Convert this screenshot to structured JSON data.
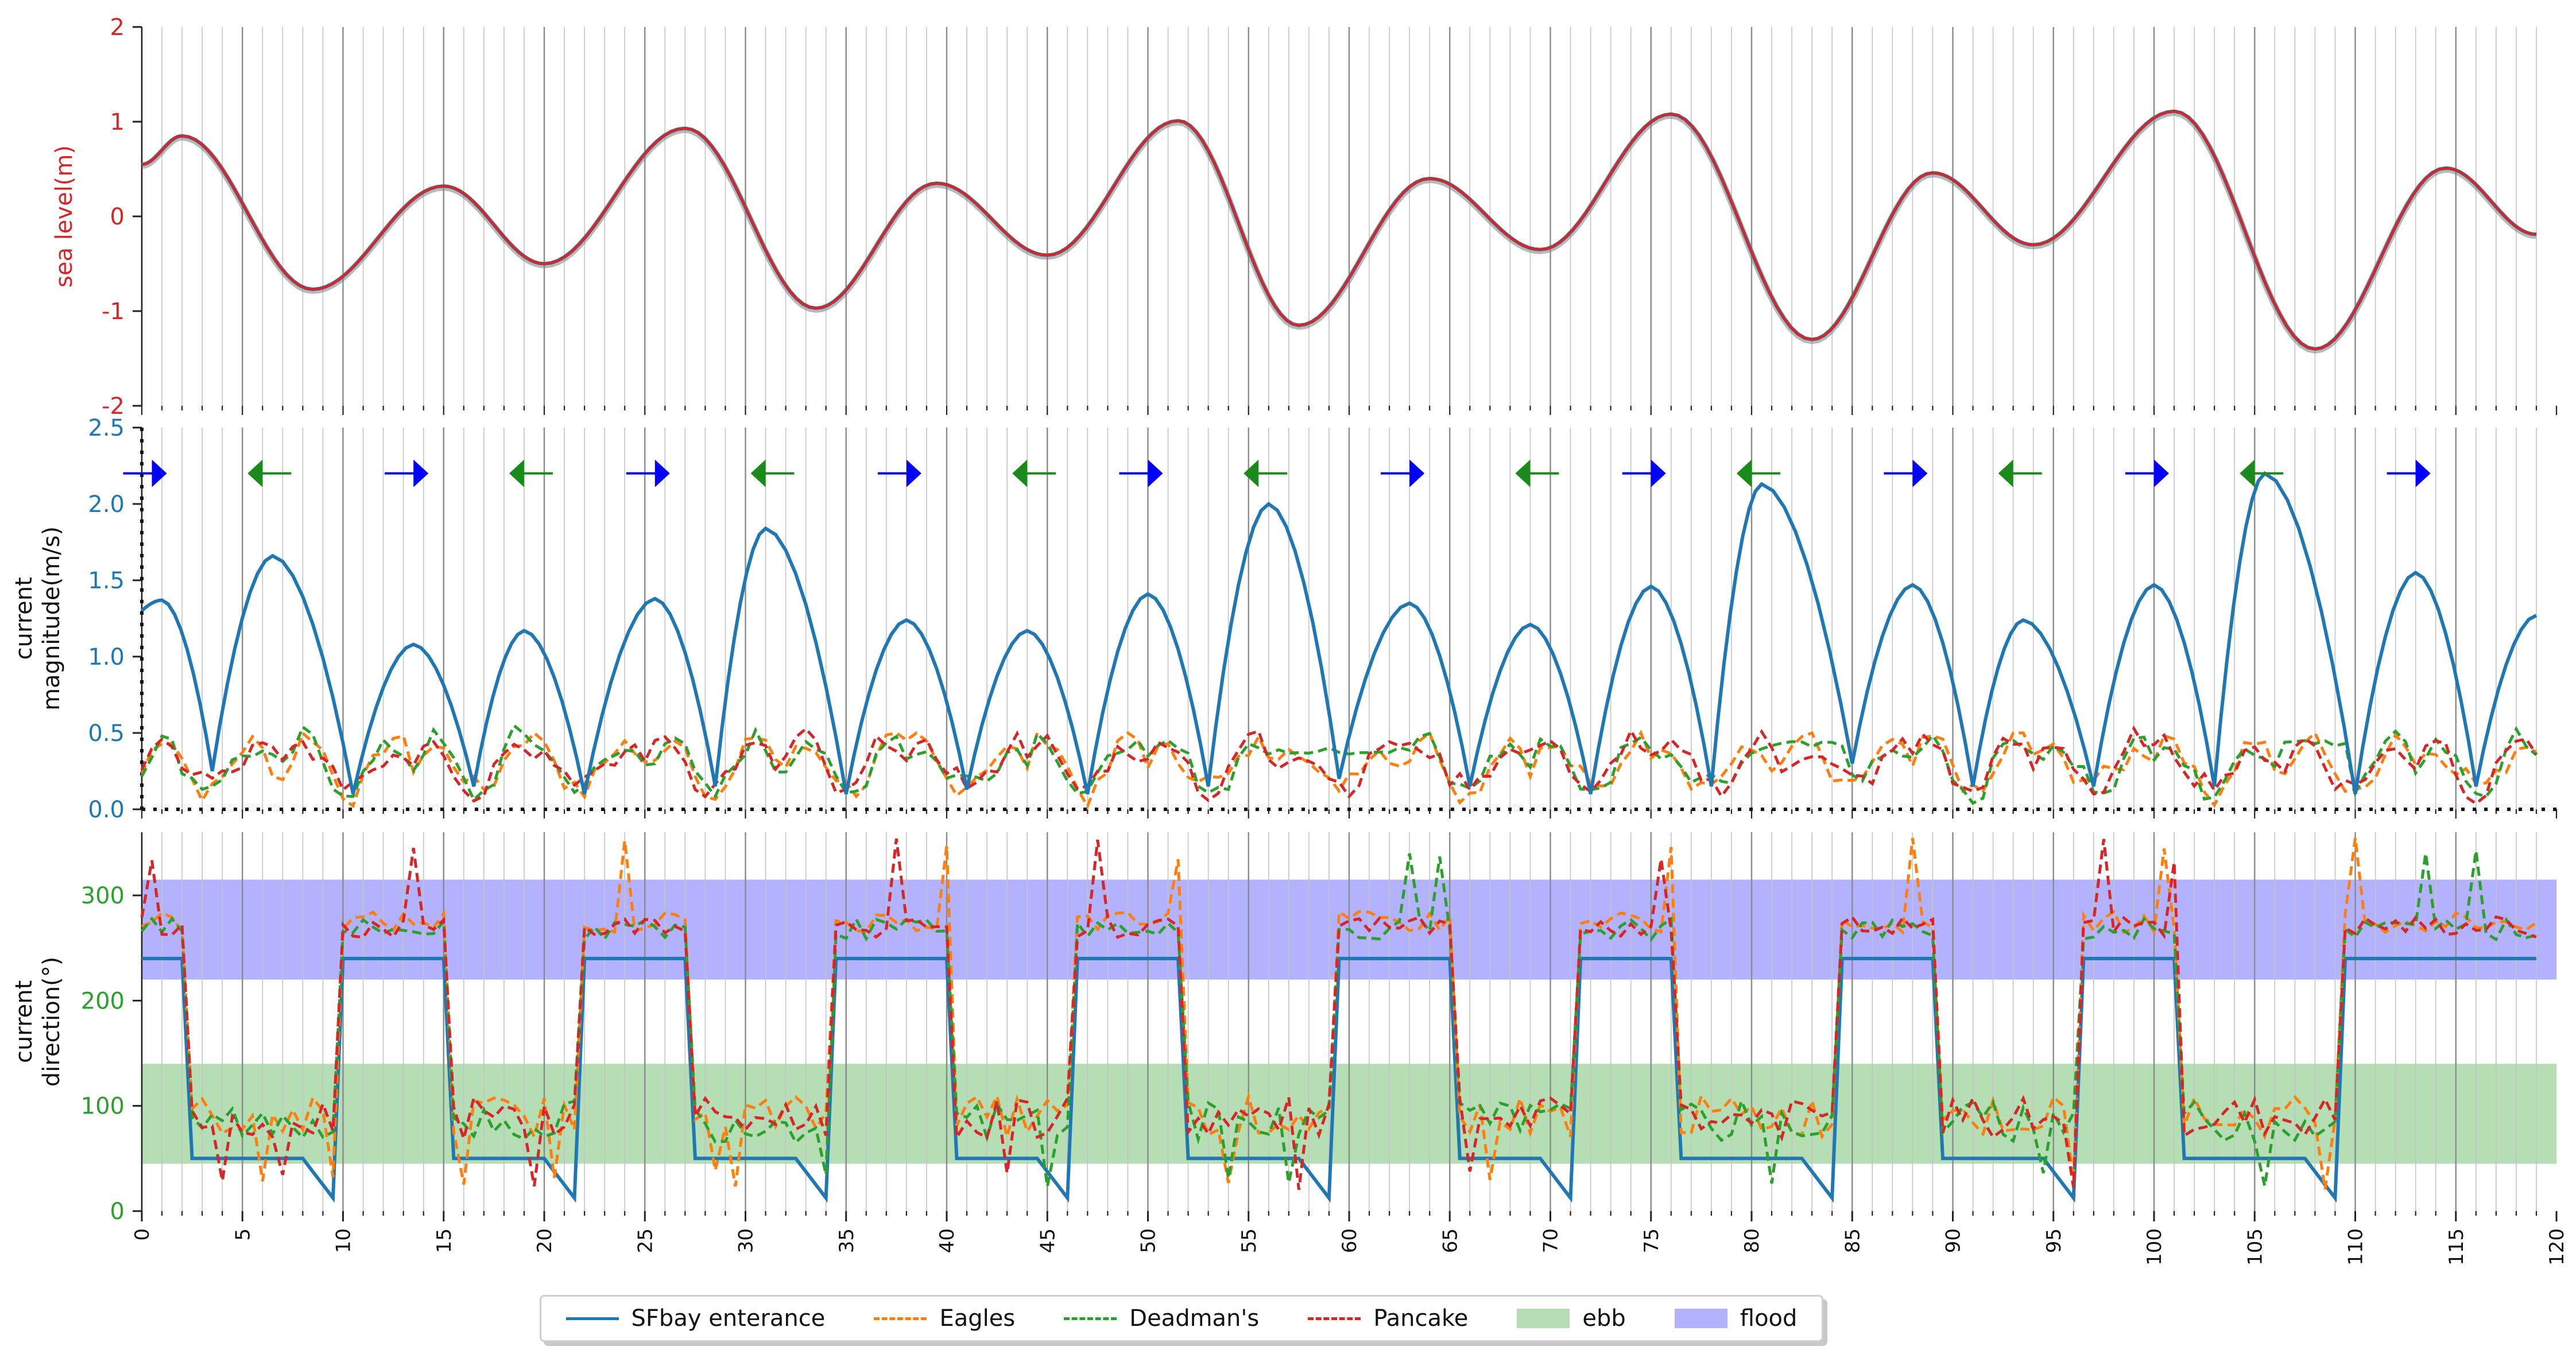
{
  "chart_data": [
    {
      "type": "line",
      "ylabel": "sea level(m)",
      "xlim": [
        0,
        120
      ],
      "ylim": [
        -2,
        2
      ],
      "yticks": [
        -2,
        -1,
        0,
        1,
        2
      ],
      "grid": "vertical",
      "colors": {
        "axis_label": "#d62728",
        "series_sfbay": "#1f77b4",
        "series_pancake": "#d62728"
      },
      "series_extrema": [
        {
          "x": 0,
          "y": 0.55
        },
        {
          "x": 2,
          "y": 0.85
        },
        {
          "x": 8.5,
          "y": -0.77
        },
        {
          "x": 15,
          "y": 0.32
        },
        {
          "x": 20,
          "y": -0.5
        },
        {
          "x": 27,
          "y": 0.93
        },
        {
          "x": 33.5,
          "y": -0.97
        },
        {
          "x": 39.5,
          "y": 0.35
        },
        {
          "x": 45,
          "y": -0.41
        },
        {
          "x": 51.5,
          "y": 1.01
        },
        {
          "x": 57.5,
          "y": -1.15
        },
        {
          "x": 64,
          "y": 0.4
        },
        {
          "x": 69.5,
          "y": -0.35
        },
        {
          "x": 76,
          "y": 1.08
        },
        {
          "x": 83,
          "y": -1.3
        },
        {
          "x": 89,
          "y": 0.46
        },
        {
          "x": 94,
          "y": -0.3
        },
        {
          "x": 101,
          "y": 1.11
        },
        {
          "x": 108,
          "y": -1.4
        },
        {
          "x": 114.5,
          "y": 0.51
        },
        {
          "x": 119,
          "y": -0.19
        }
      ]
    },
    {
      "type": "line",
      "ylabel": "current magnitude(m/s)",
      "xlim": [
        0,
        120
      ],
      "ylim": [
        0,
        2.5
      ],
      "yticks": [
        0.0,
        0.5,
        1.0,
        1.5,
        2.0,
        2.5
      ],
      "grid": "vertical",
      "series": [
        {
          "name": "SFbay enterance",
          "style": "solid",
          "color": "#1f77b4",
          "peaks": [
            [
              0,
              1.3
            ],
            [
              1,
              1.37
            ],
            [
              6.5,
              1.66
            ],
            [
              13.5,
              1.08
            ],
            [
              19,
              1.17
            ],
            [
              25.5,
              1.38
            ],
            [
              31,
              1.84
            ],
            [
              38,
              1.24
            ],
            [
              44,
              1.17
            ],
            [
              50,
              1.41
            ],
            [
              56,
              2.0
            ],
            [
              63,
              1.35
            ],
            [
              69,
              1.21
            ],
            [
              75,
              1.46
            ],
            [
              80.5,
              2.13
            ],
            [
              88,
              1.47
            ],
            [
              93.5,
              1.24
            ],
            [
              100,
              1.47
            ],
            [
              105.5,
              2.2
            ],
            [
              113,
              1.55
            ],
            [
              119,
              1.27
            ]
          ],
          "troughs": [
            [
              3.5,
              0.25
            ],
            [
              10.5,
              0.1
            ],
            [
              16.5,
              0.15
            ],
            [
              22,
              0.1
            ],
            [
              28.5,
              0.15
            ],
            [
              35,
              0.1
            ],
            [
              41,
              0.13
            ],
            [
              47,
              0.1
            ],
            [
              53,
              0.15
            ],
            [
              59.5,
              0.2
            ],
            [
              66,
              0.15
            ],
            [
              72,
              0.1
            ],
            [
              78,
              0.15
            ],
            [
              85,
              0.3
            ],
            [
              91,
              0.15
            ],
            [
              97,
              0.15
            ],
            [
              103,
              0.15
            ],
            [
              110,
              0.1
            ],
            [
              116,
              0.15
            ]
          ]
        },
        {
          "name": "Eagles",
          "style": "dashed",
          "color": "#ff7f0e",
          "level_range": [
            0,
            0.5
          ]
        },
        {
          "name": "Deadman's",
          "style": "dashed",
          "color": "#2ca02c",
          "level_range": [
            0,
            0.7
          ]
        },
        {
          "name": "Pancake",
          "style": "dashed",
          "color": "#d62728",
          "level_range": [
            0,
            0.72
          ]
        }
      ],
      "arrows": {
        "flood": {
          "color": "#0000ff",
          "direction": "right",
          "y": 2.2,
          "x": [
            0.5,
            13.5,
            25.5,
            38,
            50,
            63,
            75,
            88,
            100,
            113
          ]
        },
        "ebb": {
          "color": "#1a8a1a",
          "direction": "left",
          "y": 2.2,
          "x": [
            6,
            19,
            31,
            44,
            55.5,
            69,
            80,
            93,
            105
          ]
        }
      }
    },
    {
      "type": "line",
      "ylabel": "current direction(°)",
      "xlim": [
        0,
        120
      ],
      "ylim": [
        0,
        360
      ],
      "yticks": [
        0,
        100,
        200,
        300
      ],
      "xticks": [
        0,
        5,
        10,
        15,
        20,
        25,
        30,
        35,
        40,
        45,
        50,
        55,
        60,
        65,
        70,
        75,
        80,
        85,
        90,
        95,
        100,
        105,
        110,
        115,
        120
      ],
      "grid": "vertical",
      "bands": [
        {
          "name": "ebb",
          "color": "#2ca02c",
          "alpha": 0.35,
          "range": [
            45,
            140
          ]
        },
        {
          "name": "flood",
          "color": "#0000ff",
          "alpha": 0.3,
          "range": [
            220,
            315
          ]
        }
      ],
      "series": [
        {
          "name": "SFbay enterance",
          "style": "solid",
          "color": "#1f77b4",
          "flood_level": 240,
          "ebb_level": 50
        },
        {
          "name": "Eagles",
          "style": "dashed",
          "color": "#ff7f0e",
          "flood_level": 275,
          "ebb_level": 90
        },
        {
          "name": "Deadman's",
          "style": "dashed",
          "color": "#2ca02c",
          "flood_level": 268,
          "ebb_level": 85
        },
        {
          "name": "Pancake",
          "style": "dashed",
          "color": "#d62728",
          "flood_level": 270,
          "ebb_level": 88
        }
      ]
    }
  ],
  "legend": {
    "items": [
      {
        "label": "SFbay enterance",
        "kind": "line",
        "color": "#1f77b4"
      },
      {
        "label": "Eagles",
        "kind": "dashed",
        "color": "#ff7f0e"
      },
      {
        "label": "Deadman's",
        "kind": "dashed",
        "color": "#2ca02c"
      },
      {
        "label": "Pancake",
        "kind": "dashed",
        "color": "#d62728"
      },
      {
        "label": "ebb",
        "kind": "fill",
        "color": "#2ca02c"
      },
      {
        "label": "flood",
        "kind": "fill",
        "color": "#0000ff"
      }
    ]
  }
}
